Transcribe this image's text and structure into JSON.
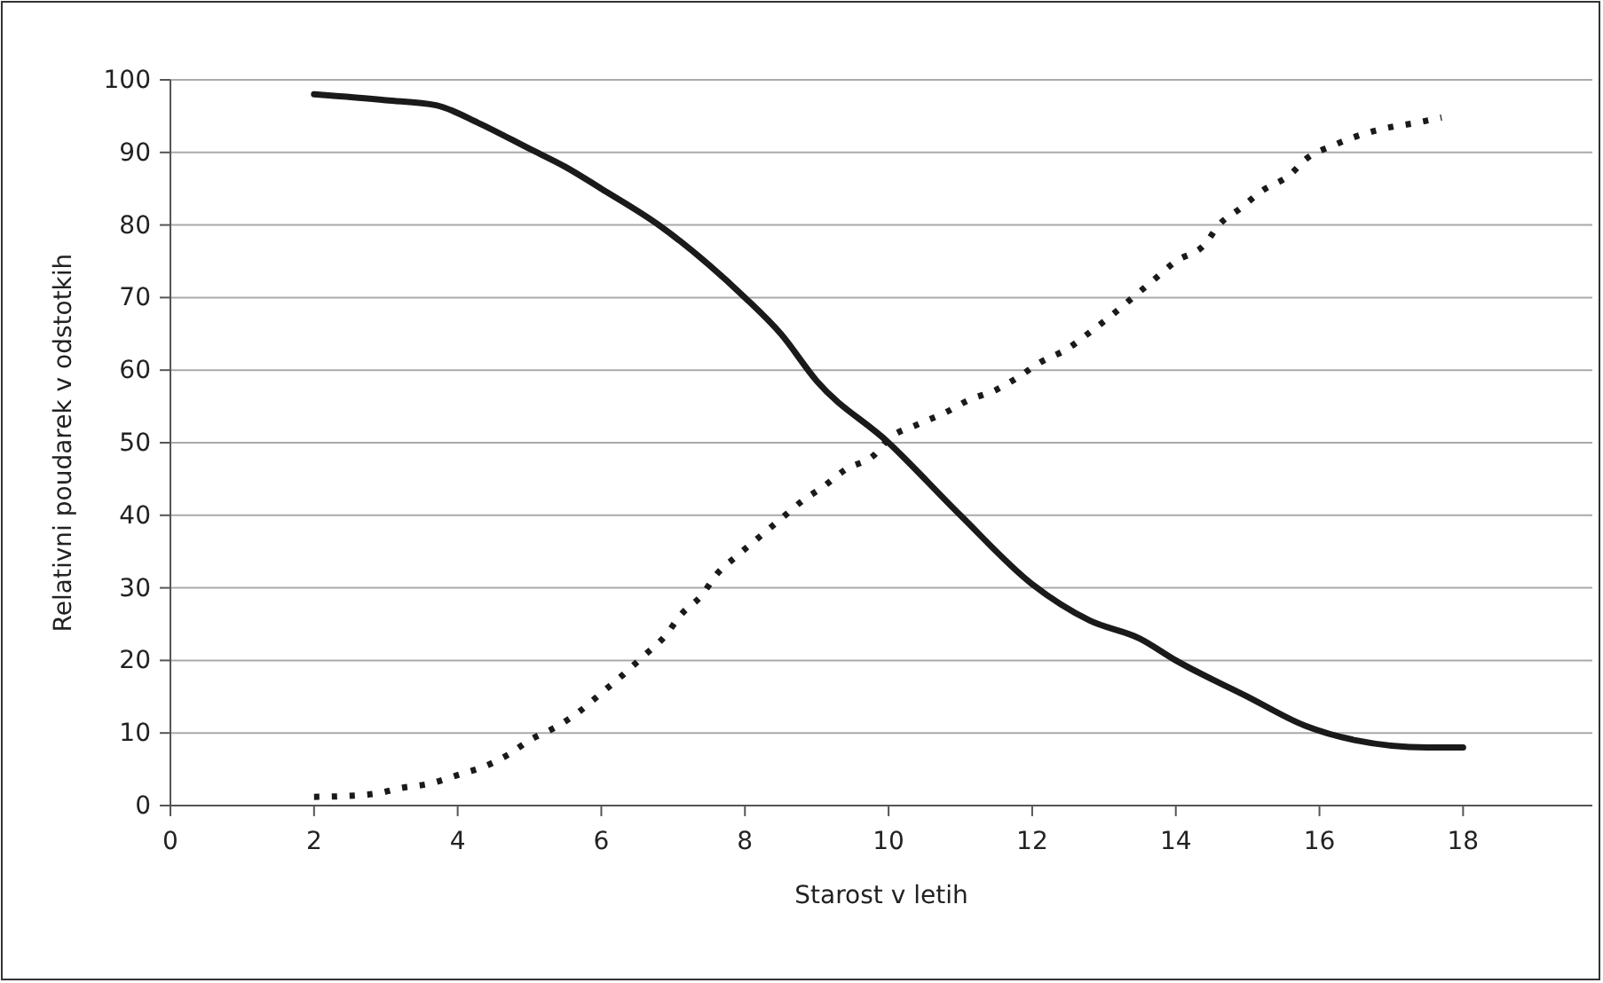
{
  "chart_data": {
    "type": "line",
    "xlabel": "Starost v letih",
    "ylabel": "Relativni poudarek v odstotkih",
    "xlim": [
      0,
      19.8
    ],
    "xticks": [
      0,
      2,
      4,
      6,
      8,
      10,
      12,
      14,
      16,
      18
    ],
    "ylim": [
      0,
      100
    ],
    "yticks": [
      0,
      10,
      20,
      30,
      40,
      50,
      60,
      70,
      80,
      90,
      100
    ],
    "grid": "y",
    "marker": "none",
    "series": [
      {
        "color": "#1a1a1a",
        "line_style": "solid",
        "x": [
          2,
          3,
          3.7,
          4.3,
          5,
          5.5,
          6,
          6.8,
          7.5,
          8,
          8.5,
          9,
          10,
          11,
          12,
          12.8,
          13.5,
          14,
          15,
          15.8,
          16.5,
          17.5,
          18
        ],
        "values": [
          98,
          97.2,
          96.5,
          94,
          90.5,
          88,
          85,
          80,
          74.5,
          70,
          65,
          58.5,
          50,
          40,
          30.5,
          25.5,
          23,
          20,
          15,
          11,
          9,
          8,
          8
        ]
      },
      {
        "color": "#1a1a1a",
        "line_style": "dotted",
        "x": [
          2,
          2.4,
          2.9,
          3.2,
          3.6,
          4,
          4.4,
          4.7,
          5,
          5.4,
          5.7,
          6,
          6.3,
          6.6,
          6.9,
          7.1,
          7.4,
          7.6,
          7.9,
          8.2,
          8.5,
          8.8,
          9.1,
          9.4,
          9.8,
          10,
          10.4,
          10.8,
          11.1,
          11.5,
          11.8,
          12.1,
          12.5,
          12.8,
          13.1,
          13.4,
          13.7,
          14,
          14.4,
          14.6,
          14.9,
          15.2,
          15.6,
          15.8,
          16.2,
          16.6,
          17,
          17.3,
          17.7
        ],
        "values": [
          1.2,
          1.3,
          1.7,
          2.4,
          3,
          4.2,
          5.5,
          7,
          9,
          11,
          13,
          15.5,
          18,
          20.7,
          23.5,
          26.2,
          29,
          31.8,
          34.5,
          37,
          39.5,
          42,
          44,
          46.3,
          48.3,
          50.5,
          52.5,
          54.2,
          55.8,
          57.3,
          59,
          61,
          63,
          65.2,
          67.5,
          70,
          72.5,
          75,
          77.3,
          80,
          82.3,
          84.7,
          87,
          89,
          91,
          92.5,
          93.5,
          94,
          94.8
        ]
      }
    ]
  }
}
